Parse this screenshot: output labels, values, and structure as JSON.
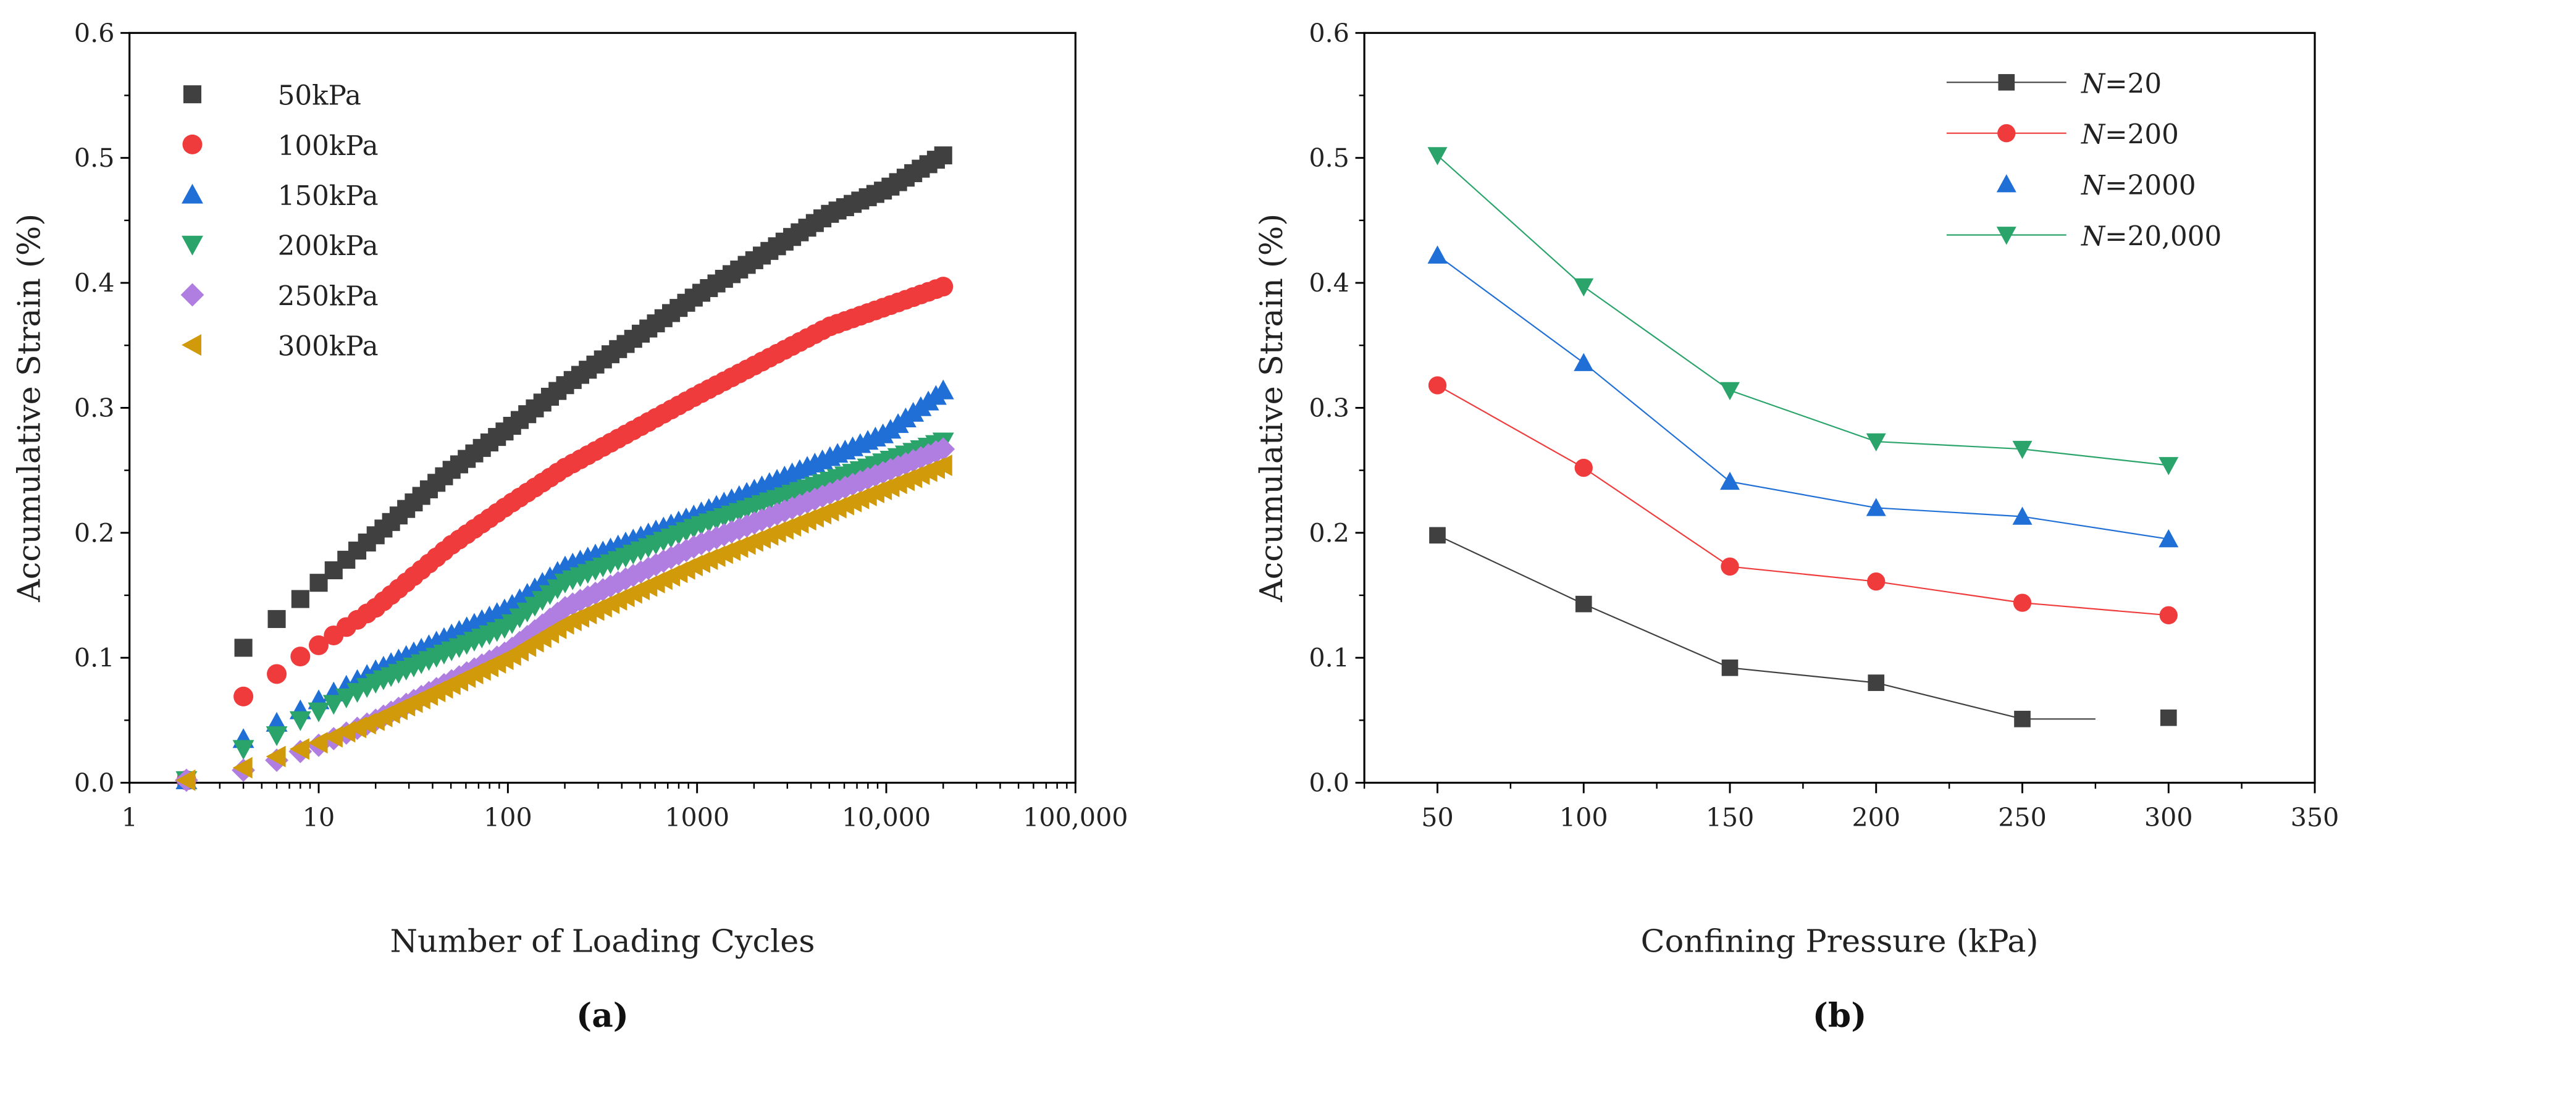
{
  "chart_data": [
    {
      "type": "scatter",
      "panel_label": "(a)",
      "title": "",
      "xlabel": "Number of Loading Cycles",
      "ylabel": "Accumulative Strain (%)",
      "xscale": "log",
      "xlim": [
        1,
        100000
      ],
      "ylim": [
        0,
        0.6
      ],
      "xticks": [
        "1",
        "10",
        "100",
        "1000",
        "10,000",
        "100,000"
      ],
      "yticks": [
        "0.0",
        "0.1",
        "0.2",
        "0.3",
        "0.4",
        "0.5",
        "0.6"
      ],
      "legend_position": "top-left",
      "series": [
        {
          "name": "50kPa",
          "color": "#404040",
          "marker": "square",
          "points": [
            [
              2,
              0.002
            ],
            [
              4,
              0.108
            ],
            [
              6,
              0.131
            ],
            [
              8,
              0.147
            ],
            [
              10,
              0.16
            ],
            [
              20,
              0.198
            ],
            [
              50,
              0.25
            ],
            [
              100,
              0.283
            ],
            [
              200,
              0.318
            ],
            [
              1000,
              0.39
            ],
            [
              5000,
              0.455
            ],
            [
              10000,
              0.475
            ],
            [
              20000,
              0.502
            ]
          ]
        },
        {
          "name": "100kPa",
          "color": "#ef3b3b",
          "marker": "circle",
          "points": [
            [
              2,
              0.002
            ],
            [
              4,
              0.069
            ],
            [
              6,
              0.087
            ],
            [
              8,
              0.101
            ],
            [
              10,
              0.11
            ],
            [
              20,
              0.14
            ],
            [
              50,
              0.19
            ],
            [
              100,
              0.222
            ],
            [
              200,
              0.252
            ],
            [
              1000,
              0.31
            ],
            [
              5000,
              0.365
            ],
            [
              20000,
              0.397
            ]
          ]
        },
        {
          "name": "150kPa",
          "color": "#1f6fd6",
          "marker": "triangle-up",
          "points": [
            [
              2,
              0.002
            ],
            [
              4,
              0.035
            ],
            [
              6,
              0.048
            ],
            [
              8,
              0.058
            ],
            [
              10,
              0.066
            ],
            [
              20,
              0.09
            ],
            [
              100,
              0.14
            ],
            [
              200,
              0.173
            ],
            [
              1000,
              0.215
            ],
            [
              10000,
              0.28
            ],
            [
              20000,
              0.314
            ]
          ]
        },
        {
          "name": "200kPa",
          "color": "#2aa46a",
          "marker": "triangle-down",
          "points": [
            [
              2,
              0.002
            ],
            [
              4,
              0.027
            ],
            [
              6,
              0.038
            ],
            [
              8,
              0.05
            ],
            [
              10,
              0.057
            ],
            [
              20,
              0.08
            ],
            [
              100,
              0.125
            ],
            [
              200,
              0.16
            ],
            [
              1000,
              0.205
            ],
            [
              20000,
              0.273
            ]
          ]
        },
        {
          "name": "250kPa",
          "color": "#b07ee0",
          "marker": "diamond",
          "points": [
            [
              2,
              0.002
            ],
            [
              4,
              0.01
            ],
            [
              6,
              0.018
            ],
            [
              8,
              0.025
            ],
            [
              10,
              0.03
            ],
            [
              20,
              0.05
            ],
            [
              100,
              0.105
            ],
            [
              200,
              0.14
            ],
            [
              1000,
              0.19
            ],
            [
              20000,
              0.267
            ]
          ]
        },
        {
          "name": "300kPa",
          "color": "#d19a0a",
          "marker": "triangle-left",
          "points": [
            [
              2,
              0.002
            ],
            [
              4,
              0.012
            ],
            [
              6,
              0.021
            ],
            [
              8,
              0.027
            ],
            [
              10,
              0.032
            ],
            [
              20,
              0.05
            ],
            [
              100,
              0.1
            ],
            [
              200,
              0.127
            ],
            [
              1000,
              0.175
            ],
            [
              20000,
              0.254
            ]
          ]
        }
      ]
    },
    {
      "type": "line",
      "panel_label": "(b)",
      "title": "",
      "xlabel": "Confining Pressure (kPa)",
      "ylabel": "Accumulative Strain (%)",
      "xlim": [
        25,
        350
      ],
      "ylim": [
        0,
        0.6
      ],
      "xticks": [
        "50",
        "100",
        "150",
        "200",
        "250",
        "300",
        "350"
      ],
      "yticks": [
        "0.0",
        "0.1",
        "0.2",
        "0.3",
        "0.4",
        "0.5",
        "0.6"
      ],
      "legend_position": "top-right",
      "x": [
        50,
        100,
        150,
        200,
        250,
        300
      ],
      "series": [
        {
          "name_prefix": "N",
          "name_suffix": "=20",
          "color": "#404040",
          "marker": "square",
          "values": [
            0.198,
            0.143,
            0.092,
            0.08,
            0.051,
            0.052
          ]
        },
        {
          "name_prefix": "N",
          "name_suffix": "=200",
          "color": "#ef3b3b",
          "marker": "circle",
          "values": [
            0.318,
            0.252,
            0.173,
            0.161,
            0.144,
            0.134
          ]
        },
        {
          "name_prefix": "N",
          "name_suffix": "=2000",
          "color": "#1f6fd6",
          "marker": "triangle-up",
          "values": [
            0.422,
            0.336,
            0.241,
            0.22,
            0.213,
            0.195
          ]
        },
        {
          "name_prefix": "N",
          "name_suffix": "=20,000",
          "color": "#2aa46a",
          "marker": "triangle-down",
          "values": [
            0.502,
            0.397,
            0.314,
            0.273,
            0.267,
            0.254
          ]
        }
      ]
    }
  ]
}
